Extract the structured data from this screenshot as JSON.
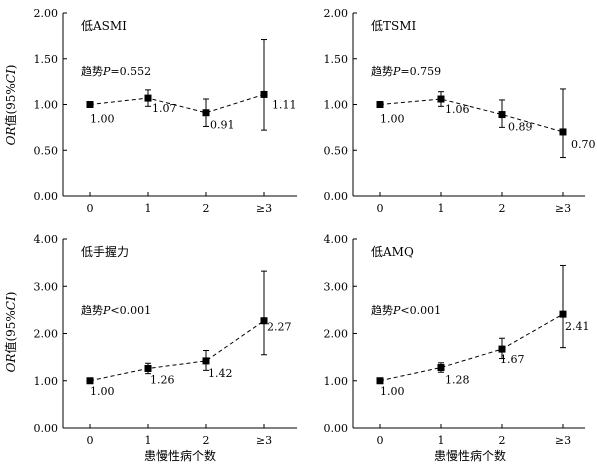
{
  "shared": {
    "xlabel": "患慢性病个数",
    "ylabel_prefix": "OR",
    "ylabel_mid": "值(95%",
    "ylabel_ci": "CI",
    "ylabel_suffix": ")"
  },
  "chart_data": [
    {
      "type": "line",
      "title": "低ASMI",
      "trend_prefix": "趋势",
      "trend_p": "P",
      "trend_value": "=0.552",
      "categories": [
        "0",
        "1",
        "2",
        "≥3"
      ],
      "values": [
        1.0,
        1.07,
        0.91,
        1.11
      ],
      "ci_lower": [
        1.0,
        0.98,
        0.76,
        0.72
      ],
      "ci_upper": [
        1.0,
        1.16,
        1.06,
        1.71
      ],
      "labels": [
        "1.00",
        "1.07",
        "0.91",
        "1.11"
      ],
      "yticks": [
        "0.00",
        "0.50",
        "1.00",
        "1.50",
        "2.00"
      ],
      "ylim": [
        0,
        2
      ],
      "grid": false
    },
    {
      "type": "line",
      "title": "低TSMI",
      "trend_prefix": "趋势",
      "trend_p": "P",
      "trend_value": "=0.759",
      "categories": [
        "0",
        "1",
        "2",
        "≥3"
      ],
      "values": [
        1.0,
        1.06,
        0.89,
        0.7
      ],
      "ci_lower": [
        1.0,
        0.98,
        0.75,
        0.42
      ],
      "ci_upper": [
        1.0,
        1.14,
        1.05,
        1.17
      ],
      "labels": [
        "1.00",
        "1.06",
        "0.89",
        "0.70"
      ],
      "yticks": [
        "0.00",
        "0.50",
        "1.00",
        "1.50",
        "2.00"
      ],
      "ylim": [
        0,
        2
      ],
      "grid": false
    },
    {
      "type": "line",
      "title": "低手握力",
      "trend_prefix": "趋势",
      "trend_p": "P",
      "trend_value": "<0.001",
      "categories": [
        "0",
        "1",
        "2",
        "≥3"
      ],
      "values": [
        1.0,
        1.26,
        1.42,
        2.27
      ],
      "ci_lower": [
        1.0,
        1.15,
        1.22,
        1.55
      ],
      "ci_upper": [
        1.0,
        1.37,
        1.64,
        3.32
      ],
      "labels": [
        "1.00",
        "1.26",
        "1.42",
        "2.27"
      ],
      "yticks": [
        "0.00",
        "1.00",
        "2.00",
        "3.00",
        "4.00"
      ],
      "ylim": [
        0,
        4
      ],
      "grid": false
    },
    {
      "type": "line",
      "title": "低AMQ",
      "trend_prefix": "趋势",
      "trend_p": "P",
      "trend_value": "<0.001",
      "categories": [
        "0",
        "1",
        "2",
        "≥3"
      ],
      "values": [
        1.0,
        1.28,
        1.67,
        2.41
      ],
      "ci_lower": [
        1.0,
        1.18,
        1.47,
        1.7
      ],
      "ci_upper": [
        1.0,
        1.38,
        1.9,
        3.44
      ],
      "labels": [
        "1.00",
        "1.28",
        "1.67",
        "2.41"
      ],
      "yticks": [
        "0.00",
        "1.00",
        "2.00",
        "3.00",
        "4.00"
      ],
      "ylim": [
        0,
        4
      ],
      "grid": false
    }
  ]
}
